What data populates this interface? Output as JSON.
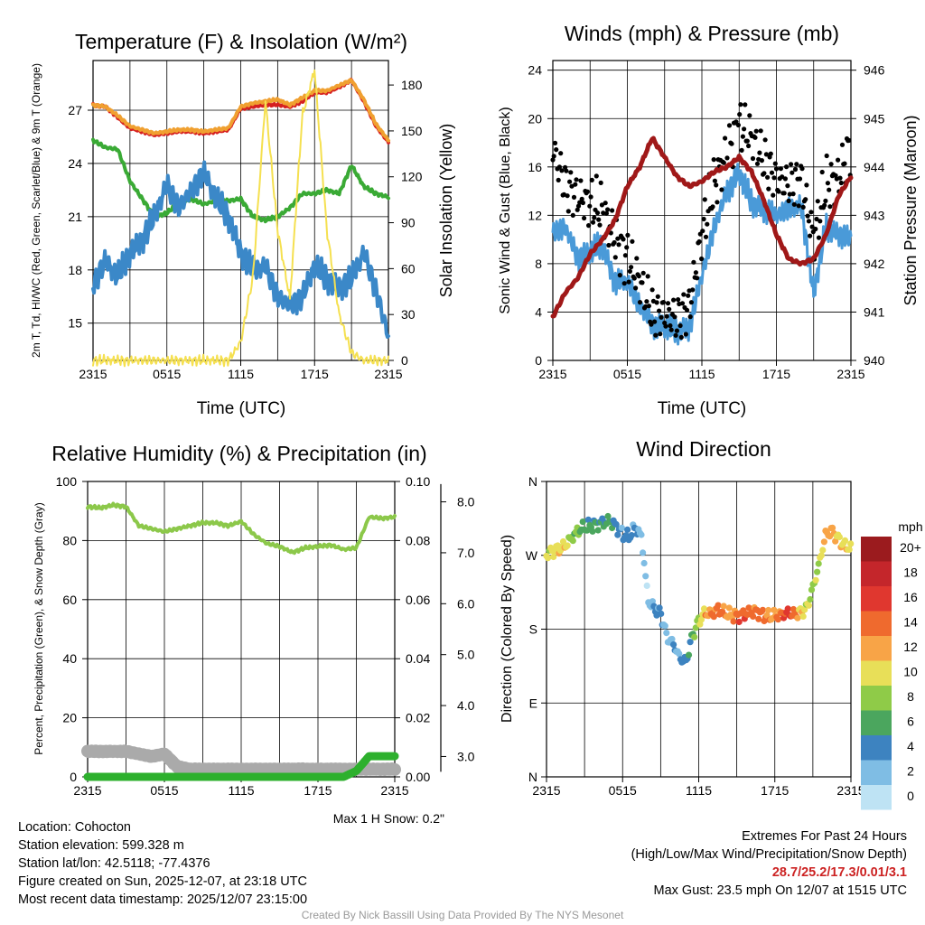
{
  "station": {
    "location": "Location: Cohocton",
    "elevation": "Station elevation: 599.328 m",
    "latlon": "Station lat/lon: 42.5118; -77.4376",
    "created": "Figure created on Sun, 2025-12-07, at 23:18 UTC",
    "recent": "Most recent data timestamp: 2025/12/07 23:15:00"
  },
  "extremes": {
    "title": "Extremes For Past 24 Hours",
    "subtitle": "(High/Low/Max Wind/Precipitation/Snow Depth)",
    "values": "28.7/25.2/17.3/0.01/3.1",
    "gust": "Max Gust: 23.5 mph On 12/07 at 1515 UTC"
  },
  "credit": "Created By Nick Bassill Using Data Provided By The NYS Mesonet",
  "colors": {
    "temp": "#d62020",
    "temp9m": "#f0a030",
    "dewpoint": "#3aaa35",
    "windchill": "#3b88c8",
    "insolation": "#f5e050",
    "wind": "#4a9ad8",
    "gust": "#000000",
    "pressure": "#a01818",
    "rh": "#8cc84a",
    "precip": "#2db02d",
    "snow": "#aaaaaa"
  },
  "chart_data": [
    {
      "type": "line",
      "title": "Temperature (F) & Insolation (W/m²)",
      "xlabel": "Time (UTC)",
      "ylabel": "2m T, Td, HI/WC (Red, Green, Scarlet/Blue) & 9m T (Orange)",
      "ylabel2": "Solar Insolation (Yellow)",
      "x_ticks": [
        "2315",
        "0515",
        "1115",
        "1715",
        "2315"
      ],
      "y_ticks": [
        "15",
        "18",
        "21",
        "24",
        "27"
      ],
      "y2_ticks": [
        "0",
        "30",
        "60",
        "90",
        "120",
        "150",
        "180"
      ],
      "ylim": [
        12.9,
        29.8
      ],
      "y2lim": [
        0,
        196
      ],
      "x_hours": [
        0,
        1,
        2,
        3,
        4,
        5,
        6,
        7,
        8,
        9,
        10,
        11,
        12,
        13,
        14,
        15,
        16,
        17,
        18,
        19,
        20,
        21,
        22,
        23,
        24
      ],
      "series": [
        {
          "name": "2m T",
          "color_key": "temp",
          "axis": "left",
          "values": [
            27.3,
            27.2,
            26.6,
            26.0,
            25.8,
            25.6,
            25.7,
            25.8,
            25.8,
            25.7,
            25.8,
            25.9,
            27.1,
            27.2,
            27.3,
            27.3,
            27.2,
            27.5,
            28.0,
            28.0,
            28.3,
            28.7,
            27.5,
            26.1,
            25.2
          ]
        },
        {
          "name": "9m T",
          "color_key": "temp9m",
          "axis": "left",
          "values": [
            27.3,
            27.2,
            26.7,
            26.1,
            25.9,
            25.7,
            25.8,
            25.9,
            25.9,
            25.8,
            25.9,
            26.0,
            27.2,
            27.4,
            27.5,
            27.6,
            27.3,
            27.7,
            28.1,
            28.1,
            28.4,
            28.7,
            27.6,
            26.2,
            25.3
          ]
        },
        {
          "name": "Td",
          "color_key": "dewpoint",
          "axis": "left",
          "values": [
            25.3,
            24.9,
            24.8,
            23.0,
            22.0,
            21.0,
            21.2,
            21.8,
            22.0,
            21.7,
            21.9,
            21.9,
            22.0,
            21.0,
            20.8,
            21.0,
            21.5,
            22.3,
            22.3,
            22.5,
            22.3,
            23.9,
            22.7,
            22.3,
            22.1
          ]
        },
        {
          "name": "HI/WC",
          "color_key": "windchill",
          "axis": "left",
          "values": [
            17.2,
            18.5,
            17.6,
            19.0,
            19.7,
            21.0,
            22.8,
            21.5,
            22.5,
            23.5,
            22.0,
            21.0,
            19.0,
            18.0,
            18.2,
            16.5,
            16.0,
            16.5,
            18.2,
            17.5,
            17.0,
            17.5,
            19.0,
            16.8,
            14.3
          ]
        },
        {
          "name": "Insolation",
          "color_key": "insolation",
          "axis": "right",
          "values": [
            0,
            0,
            0,
            0,
            0,
            0,
            0,
            0,
            0,
            0,
            0,
            0,
            12,
            55,
            170,
            85,
            40,
            160,
            190,
            85,
            30,
            5,
            0,
            0,
            0
          ]
        }
      ]
    },
    {
      "type": "line",
      "title": "Winds (mph) & Pressure (mb)",
      "xlabel": "Time (UTC)",
      "ylabel": "Sonic Wind & Gust (Blue, Black)",
      "ylabel2": "Station Pressure (Maroon)",
      "x_ticks": [
        "2315",
        "0515",
        "1115",
        "1715",
        "2315"
      ],
      "y_ticks": [
        "0",
        "4",
        "8",
        "12",
        "16",
        "20",
        "24"
      ],
      "y2_ticks": [
        "940",
        "941",
        "942",
        "943",
        "944",
        "945",
        "946"
      ],
      "ylim": [
        0,
        24.8
      ],
      "y2lim": [
        940,
        946.2
      ],
      "x_hours": [
        0,
        1,
        2,
        3,
        4,
        5,
        6,
        7,
        8,
        9,
        10,
        11,
        12,
        13,
        14,
        15,
        16,
        17,
        18,
        19,
        20,
        21,
        22,
        23,
        24
      ],
      "series": [
        {
          "name": "Sonic Wind",
          "color_key": "wind",
          "axis": "left",
          "values": [
            10.5,
            11.0,
            8.5,
            9.0,
            9.5,
            6.5,
            6.5,
            4.5,
            3.0,
            2.8,
            2.4,
            2.8,
            7.0,
            11.0,
            14.0,
            15.5,
            13.0,
            12.5,
            12.0,
            12.5,
            12.8,
            5.5,
            11.0,
            10.5,
            10.0
          ]
        },
        {
          "name": "Gust",
          "color_key": "gust",
          "axis": "left",
          "values": [
            17.5,
            14.5,
            13.5,
            13.0,
            12.5,
            10.0,
            8.5,
            6.5,
            4.0,
            3.8,
            3.4,
            4.5,
            10.5,
            14.5,
            17.0,
            19.5,
            18.5,
            16.5,
            15.0,
            14.5,
            15.0,
            10.0,
            14.5,
            15.0,
            18.0
          ]
        },
        {
          "name": "Station Pressure",
          "color_key": "pressure",
          "axis": "right",
          "values": [
            940.9,
            941.4,
            941.7,
            942.2,
            942.5,
            942.9,
            943.6,
            944.0,
            944.6,
            944.2,
            943.8,
            943.6,
            943.7,
            943.9,
            944.0,
            944.2,
            943.9,
            943.3,
            942.6,
            942.1,
            942.0,
            942.1,
            942.6,
            943.4,
            943.8
          ]
        }
      ]
    },
    {
      "type": "line",
      "title": "Relative Humidity (%) & Precipitation (in)",
      "ylabel": "Percent, Precipitation (Green), & Snow Depth (Gray)",
      "x_ticks": [
        "2315",
        "0515",
        "1115",
        "1715",
        "2315"
      ],
      "y_ticks": [
        "0",
        "20",
        "40",
        "60",
        "80",
        "100"
      ],
      "y2_ticks": [
        "0.00",
        "0.02",
        "0.04",
        "0.06",
        "0.08",
        "0.10"
      ],
      "y3_ticks": [
        "3.0",
        "4.0",
        "5.0",
        "6.0",
        "7.0",
        "8.0"
      ],
      "ylim": [
        0,
        100
      ],
      "y2lim": [
        0,
        0.1
      ],
      "y3lim": [
        2.6,
        8.4
      ],
      "annotation": "Max 1 H Snow: 0.2\"",
      "x_hours": [
        0,
        1,
        2,
        3,
        4,
        5,
        6,
        7,
        8,
        9,
        10,
        11,
        12,
        13,
        14,
        15,
        16,
        17,
        18,
        19,
        20,
        21,
        22,
        23,
        24
      ],
      "series": [
        {
          "name": "RH",
          "color_key": "rh",
          "axis": "left",
          "values": [
            91.5,
            91.0,
            92.0,
            91.5,
            85.0,
            84.0,
            83.0,
            84.0,
            85.0,
            86.0,
            86.0,
            85.0,
            86.5,
            82.0,
            79.0,
            78.0,
            76.0,
            77.5,
            78.0,
            78.5,
            77.0,
            77.5,
            88.0,
            87.5,
            88.0
          ]
        },
        {
          "name": "Precipitation",
          "color_key": "precip",
          "axis": "middle",
          "values": [
            0,
            0,
            0,
            0,
            0,
            0,
            0,
            0,
            0,
            0,
            0,
            0,
            0,
            0,
            0,
            0,
            0,
            0,
            0,
            0,
            0,
            0.002,
            0.007,
            0.007,
            0.007
          ]
        },
        {
          "name": "Snow Depth",
          "color_key": "snow",
          "axis": "right",
          "values": [
            3.1,
            3.1,
            3.1,
            3.1,
            3.05,
            3.0,
            3.05,
            2.8,
            2.75,
            2.75,
            2.75,
            2.75,
            2.75,
            2.75,
            2.75,
            2.75,
            2.75,
            2.75,
            2.75,
            2.75,
            2.75,
            2.75,
            2.75,
            2.75,
            2.75
          ]
        }
      ]
    },
    {
      "type": "scatter",
      "title": "Wind Direction",
      "ylabel": "Direction (Colored By Speed)",
      "x_ticks": [
        "2315",
        "0515",
        "1115",
        "1715",
        "2315"
      ],
      "y_ticks": [
        "N",
        "E",
        "S",
        "W",
        "N"
      ],
      "ylim": [
        0,
        360
      ],
      "colorbar_title": "mph",
      "colorbar_labels": [
        "20+",
        "18",
        "16",
        "14",
        "12",
        "10",
        "8",
        "6",
        "4",
        "2",
        "0"
      ],
      "colorbar_colors": [
        "#9b1b1e",
        "#c4262b",
        "#e0372f",
        "#ef6a2e",
        "#f8a447",
        "#e8df58",
        "#8fcb48",
        "#4ba65e",
        "#3d83c0",
        "#7fbde4",
        "#bee3f4"
      ],
      "hours": [
        0,
        0.5,
        1,
        1.5,
        2,
        2.5,
        3,
        3.5,
        4,
        4.5,
        5,
        5.5,
        6,
        6.5,
        7,
        7.5,
        8,
        8.5,
        9,
        9.5,
        10,
        10.5,
        11,
        11.5,
        12,
        12.5,
        13,
        13.5,
        14,
        14.5,
        15,
        15.5,
        16,
        16.5,
        17,
        17.5,
        18,
        18.5,
        19,
        19.5,
        20,
        20.5,
        21,
        21.5,
        22,
        22.5,
        23,
        23.5,
        24
      ],
      "directions": [
        272,
        275,
        278,
        282,
        292,
        300,
        304,
        306,
        308,
        310,
        312,
        305,
        296,
        292,
        305,
        292,
        215,
        205,
        200,
        170,
        162,
        145,
        140,
        172,
        190,
        200,
        198,
        205,
        200,
        197,
        196,
        198,
        200,
        202,
        198,
        195,
        196,
        198,
        200,
        198,
        200,
        205,
        230,
        260,
        295,
        300,
        290,
        282,
        278
      ],
      "speeds": [
        9,
        10,
        11,
        10,
        8,
        7,
        6,
        6,
        6,
        5,
        6,
        4,
        3,
        4,
        3,
        2,
        1,
        3,
        4,
        2,
        3,
        3,
        4,
        6,
        9,
        12,
        13,
        14,
        13,
        12,
        14,
        15,
        14,
        13,
        14,
        13,
        12,
        14,
        16,
        14,
        11,
        9,
        8,
        9,
        12,
        12,
        10,
        11,
        10
      ]
    }
  ]
}
